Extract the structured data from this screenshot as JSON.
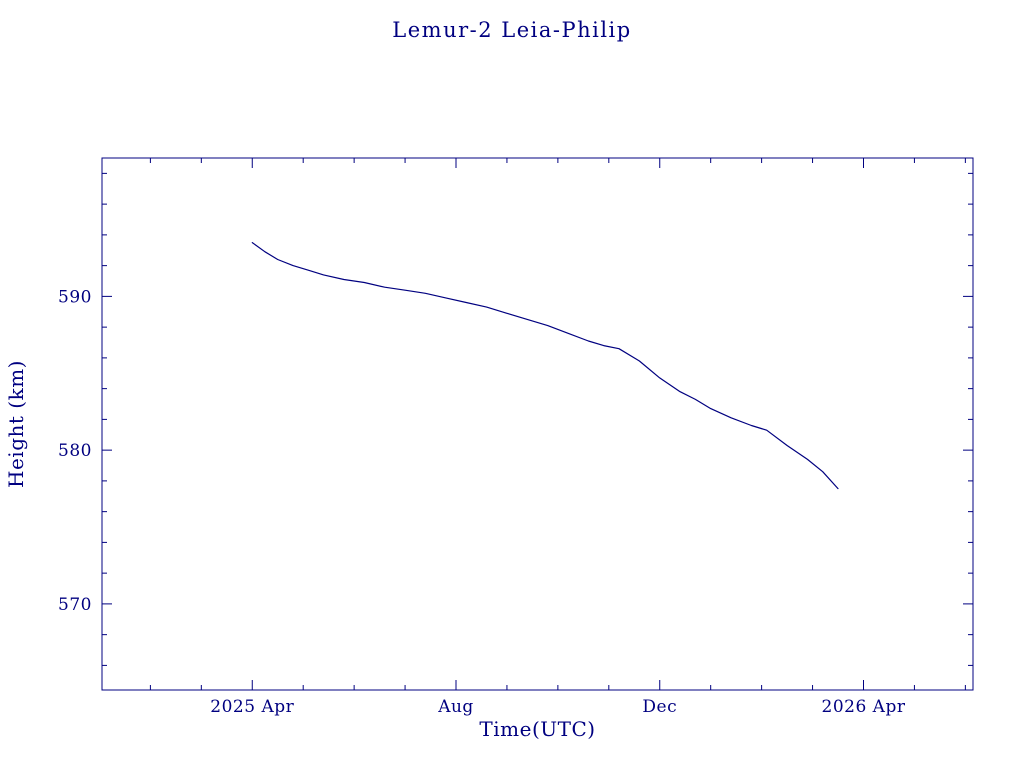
{
  "page": {
    "background": "#ffffff",
    "accent": "#000080"
  },
  "chart_data": {
    "type": "line",
    "title": "Lemur-2 Leia-Philip",
    "xlabel": "Time(UTC)",
    "ylabel": "Height (km)",
    "x_unit": "months since 2025 Apr",
    "xlim": [
      -2.95,
      14.15
    ],
    "ylim": [
      564.4,
      599.0
    ],
    "grid": false,
    "legend": null,
    "axis_color": "#000080",
    "line_color": "#000080",
    "x_ticks": [
      {
        "value": 0,
        "label": "2025 Apr"
      },
      {
        "value": 4,
        "label": "Aug"
      },
      {
        "value": 8,
        "label": "Dec"
      },
      {
        "value": 12,
        "label": "2026 Apr"
      }
    ],
    "x_minor_step": 1,
    "y_ticks": [
      {
        "value": 570,
        "label": "570"
      },
      {
        "value": 580,
        "label": "580"
      },
      {
        "value": 590,
        "label": "590"
      }
    ],
    "y_minor_step": 2,
    "series": [
      {
        "name": "orbit-height-km",
        "x": [
          0.0,
          0.25,
          0.5,
          0.8,
          1.1,
          1.4,
          1.8,
          2.2,
          2.6,
          3.0,
          3.4,
          3.8,
          4.2,
          4.6,
          5.0,
          5.4,
          5.8,
          6.2,
          6.6,
          6.9,
          7.2,
          7.6,
          8.0,
          8.4,
          8.7,
          9.0,
          9.4,
          9.8,
          10.1,
          10.5,
          10.9,
          11.2,
          11.5
        ],
        "y": [
          593.5,
          592.9,
          592.4,
          592.0,
          591.7,
          591.4,
          591.1,
          590.9,
          590.6,
          590.4,
          590.2,
          589.9,
          589.6,
          589.3,
          588.9,
          588.5,
          588.1,
          587.6,
          587.1,
          586.8,
          586.6,
          585.8,
          584.7,
          583.8,
          583.3,
          582.7,
          582.1,
          581.6,
          581.3,
          580.3,
          579.4,
          578.6,
          577.5
        ]
      }
    ]
  }
}
